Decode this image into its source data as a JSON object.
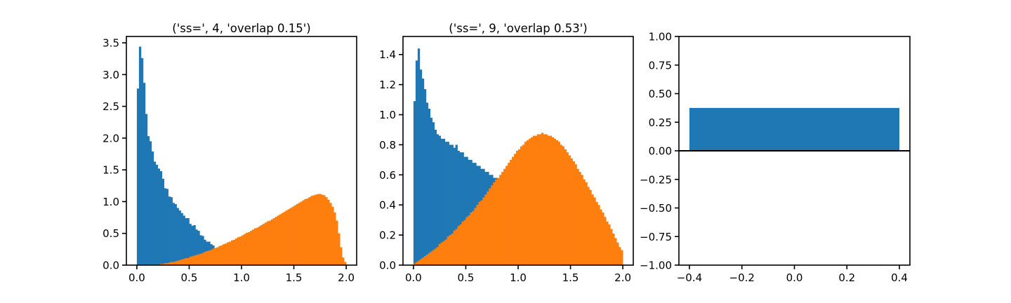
{
  "chart_data": [
    {
      "type": "histogram",
      "title": "('ss=', 4, 'overlap 0.15')",
      "xlim": [
        -0.1,
        2.1
      ],
      "ylim": [
        0,
        3.6
      ],
      "xticks": [
        0.0,
        0.5,
        1.0,
        1.5,
        2.0
      ],
      "xtick_labels": [
        "0.0",
        "0.5",
        "1.0",
        "1.5",
        "2.0"
      ],
      "yticks": [
        0.0,
        0.5,
        1.0,
        1.5,
        2.0,
        2.5,
        3.0,
        3.5
      ],
      "ytick_labels": [
        "0.0",
        "0.5",
        "1.0",
        "1.5",
        "2.0",
        "2.5",
        "3.0",
        "3.5"
      ],
      "bin_width": 0.02,
      "series": [
        {
          "color": "#1f77b4",
          "x_start": 0.0,
          "values": [
            2.78,
            3.44,
            3.26,
            2.87,
            2.38,
            2.03,
            1.95,
            1.79,
            1.63,
            1.58,
            1.52,
            1.48,
            1.36,
            1.21,
            1.2,
            1.08,
            1.07,
            0.98,
            0.96,
            0.9,
            0.86,
            0.82,
            0.78,
            0.74,
            0.74,
            0.65,
            0.62,
            0.63,
            0.56,
            0.54,
            0.47,
            0.46,
            0.4,
            0.37,
            0.37,
            0.33,
            0.31,
            0.25,
            0.22,
            0.22
          ]
        },
        {
          "color": "#ff7f0e",
          "x_start": 0.22,
          "values": [
            0.02,
            0.02,
            0.03,
            0.03,
            0.04,
            0.05,
            0.05,
            0.06,
            0.07,
            0.08,
            0.09,
            0.1,
            0.11,
            0.11,
            0.13,
            0.14,
            0.15,
            0.16,
            0.17,
            0.18,
            0.19,
            0.21,
            0.22,
            0.23,
            0.24,
            0.26,
            0.27,
            0.28,
            0.3,
            0.31,
            0.33,
            0.34,
            0.36,
            0.37,
            0.39,
            0.4,
            0.42,
            0.44,
            0.45,
            0.47,
            0.49,
            0.51,
            0.52,
            0.54,
            0.56,
            0.58,
            0.59,
            0.61,
            0.63,
            0.65,
            0.67,
            0.69,
            0.7,
            0.72,
            0.74,
            0.76,
            0.78,
            0.8,
            0.82,
            0.84,
            0.86,
            0.88,
            0.9,
            0.92,
            0.94,
            0.96,
            0.98,
            1.0,
            1.02,
            1.04,
            1.05,
            1.07,
            1.09,
            1.1,
            1.11,
            1.12,
            1.12,
            1.11,
            1.1,
            1.07,
            1.03,
            0.98,
            0.92,
            0.83,
            0.7,
            0.5,
            0.28,
            0.12,
            0.05
          ]
        }
      ]
    },
    {
      "type": "histogram",
      "title": "('ss=', 9, 'overlap 0.53')",
      "xlim": [
        -0.1,
        2.1
      ],
      "ylim": [
        0,
        1.52
      ],
      "xticks": [
        0.0,
        0.5,
        1.0,
        1.5,
        2.0
      ],
      "xtick_labels": [
        "0.0",
        "0.5",
        "1.0",
        "1.5",
        "2.0"
      ],
      "yticks": [
        0.0,
        0.2,
        0.4,
        0.6,
        0.8,
        1.0,
        1.2,
        1.4
      ],
      "ytick_labels": [
        "0.0",
        "0.2",
        "0.4",
        "0.6",
        "0.8",
        "1.0",
        "1.2",
        "1.4"
      ],
      "bin_width": 0.02,
      "series": [
        {
          "color": "#1f77b4",
          "x_start": 0.0,
          "values": [
            1.09,
            1.36,
            1.44,
            1.3,
            1.24,
            1.17,
            1.08,
            1.04,
            0.98,
            0.95,
            0.9,
            0.87,
            0.86,
            0.84,
            0.84,
            0.82,
            0.82,
            0.8,
            0.8,
            0.78,
            0.8,
            0.76,
            0.75,
            0.75,
            0.72,
            0.72,
            0.7,
            0.7,
            0.68,
            0.68,
            0.66,
            0.66,
            0.64,
            0.64,
            0.62,
            0.62,
            0.6,
            0.6,
            0.58,
            0.58
          ]
        },
        {
          "color": "#ff7f0e",
          "x_start": 0.0,
          "values": [
            0.01,
            0.02,
            0.03,
            0.04,
            0.05,
            0.06,
            0.07,
            0.08,
            0.09,
            0.1,
            0.11,
            0.12,
            0.14,
            0.15,
            0.16,
            0.17,
            0.19,
            0.2,
            0.21,
            0.23,
            0.24,
            0.26,
            0.27,
            0.29,
            0.3,
            0.32,
            0.33,
            0.35,
            0.36,
            0.38,
            0.4,
            0.42,
            0.43,
            0.45,
            0.47,
            0.49,
            0.51,
            0.53,
            0.55,
            0.57,
            0.58,
            0.6,
            0.62,
            0.64,
            0.66,
            0.68,
            0.7,
            0.72,
            0.74,
            0.76,
            0.77,
            0.79,
            0.8,
            0.82,
            0.83,
            0.84,
            0.85,
            0.86,
            0.86,
            0.87,
            0.87,
            0.88,
            0.87,
            0.87,
            0.86,
            0.86,
            0.85,
            0.84,
            0.83,
            0.82,
            0.8,
            0.79,
            0.77,
            0.75,
            0.73,
            0.71,
            0.69,
            0.67,
            0.64,
            0.62,
            0.6,
            0.57,
            0.55,
            0.52,
            0.5,
            0.47,
            0.45,
            0.42,
            0.4,
            0.37,
            0.35,
            0.32,
            0.29,
            0.27,
            0.24,
            0.21,
            0.18,
            0.15,
            0.12,
            0.1
          ]
        }
      ]
    },
    {
      "type": "bar",
      "title": "",
      "xlim": [
        -0.44,
        0.44
      ],
      "ylim": [
        -1.0,
        1.0
      ],
      "xticks": [
        -0.4,
        -0.2,
        0.0,
        0.2,
        0.4
      ],
      "xtick_labels": [
        "−0.4",
        "−0.2",
        "0.0",
        "0.2",
        "0.4"
      ],
      "yticks": [
        -1.0,
        -0.75,
        -0.5,
        -0.25,
        0.0,
        0.25,
        0.5,
        0.75,
        1.0
      ],
      "ytick_labels": [
        "−1.00",
        "−0.75",
        "−0.50",
        "−0.25",
        "0.00",
        "0.25",
        "0.50",
        "0.75",
        "1.00"
      ],
      "bars": [
        {
          "x": 0.0,
          "width": 0.8,
          "value": 0.375,
          "color": "#1f77b4"
        }
      ],
      "hline": 0.0
    }
  ]
}
